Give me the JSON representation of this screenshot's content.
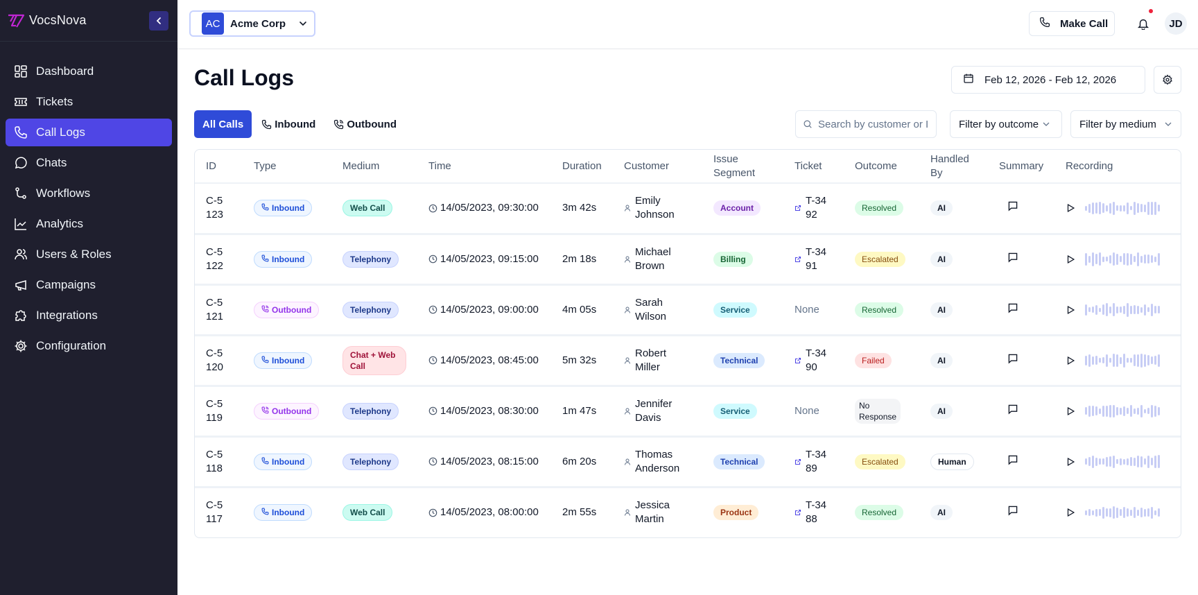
{
  "brand": {
    "name": "VocsNova"
  },
  "sidebar": {
    "items": [
      {
        "label": "Dashboard",
        "icon": "dashboard-icon",
        "active": false
      },
      {
        "label": "Tickets",
        "icon": "ticket-icon",
        "active": false
      },
      {
        "label": "Call Logs",
        "icon": "phone-icon",
        "active": true
      },
      {
        "label": "Chats",
        "icon": "chat-icon",
        "active": false
      },
      {
        "label": "Workflows",
        "icon": "workflow-icon",
        "active": false
      },
      {
        "label": "Analytics",
        "icon": "analytics-icon",
        "active": false
      },
      {
        "label": "Users & Roles",
        "icon": "users-icon",
        "active": false
      },
      {
        "label": "Campaigns",
        "icon": "megaphone-icon",
        "active": false
      },
      {
        "label": "Integrations",
        "icon": "puzzle-icon",
        "active": false
      },
      {
        "label": "Configuration",
        "icon": "gear-icon",
        "active": false
      }
    ]
  },
  "topbar": {
    "org_initials": "AC",
    "org_name": "Acme Corp",
    "make_call_label": "Make Call",
    "user_initials": "JD",
    "notification_dot": true
  },
  "page": {
    "title": "Call Logs",
    "date_range": "Feb 12, 2026 - Feb 12, 2026"
  },
  "tabs": [
    {
      "label": "All Calls",
      "active": true
    },
    {
      "label": "Inbound",
      "active": false
    },
    {
      "label": "Outbound",
      "active": false
    }
  ],
  "filters": {
    "search_placeholder": "Search by customer or I",
    "search_value": "",
    "outcome_label": "Filter by outcome",
    "medium_label": "Filter by medium"
  },
  "table": {
    "columns": [
      "ID",
      "Type",
      "Medium",
      "Time",
      "Duration",
      "Customer",
      "Issue Segment",
      "Ticket",
      "Outcome",
      "Handled By",
      "Summary",
      "Recording"
    ],
    "rows": [
      {
        "id": "C-5123",
        "type": "Inbound",
        "medium": "Web Call",
        "time": "14/05/2023, 09:30:00",
        "duration": "3m 42s",
        "customer": "Emily Johnson",
        "segment": "Account",
        "ticket": "T-3492",
        "outcome": "Resolved",
        "handled_by": "AI"
      },
      {
        "id": "C-5122",
        "type": "Inbound",
        "medium": "Telephony",
        "time": "14/05/2023, 09:15:00",
        "duration": "2m 18s",
        "customer": "Michael Brown",
        "segment": "Billing",
        "ticket": "T-3491",
        "outcome": "Escalated",
        "handled_by": "AI"
      },
      {
        "id": "C-5121",
        "type": "Outbound",
        "medium": "Telephony",
        "time": "14/05/2023, 09:00:00",
        "duration": "4m 05s",
        "customer": "Sarah Wilson",
        "segment": "Service",
        "ticket": "None",
        "outcome": "Resolved",
        "handled_by": "AI"
      },
      {
        "id": "C-5120",
        "type": "Inbound",
        "medium": "Chat + Web Call",
        "time": "14/05/2023, 08:45:00",
        "duration": "5m 32s",
        "customer": "Robert Miller",
        "segment": "Technical",
        "ticket": "T-3490",
        "outcome": "Failed",
        "handled_by": "AI"
      },
      {
        "id": "C-5119",
        "type": "Outbound",
        "medium": "Telephony",
        "time": "14/05/2023, 08:30:00",
        "duration": "1m 47s",
        "customer": "Jennifer Davis",
        "segment": "Service",
        "ticket": "None",
        "outcome": "No Response",
        "handled_by": "AI"
      },
      {
        "id": "C-5118",
        "type": "Inbound",
        "medium": "Telephony",
        "time": "14/05/2023, 08:15:00",
        "duration": "6m 20s",
        "customer": "Thomas Anderson",
        "segment": "Technical",
        "ticket": "T-3489",
        "outcome": "Escalated",
        "handled_by": "Human"
      },
      {
        "id": "C-5117",
        "type": "Inbound",
        "medium": "Web Call",
        "time": "14/05/2023, 08:00:00",
        "duration": "2m 55s",
        "customer": "Jessica Martin",
        "segment": "Product",
        "ticket": "T-3488",
        "outcome": "Resolved",
        "handled_by": "AI"
      }
    ]
  },
  "colors": {
    "sidebar_bg": "#1f1f2e",
    "active_nav": "#4f46e5",
    "primary": "#2f4bd8",
    "notification": "#ef233c"
  }
}
